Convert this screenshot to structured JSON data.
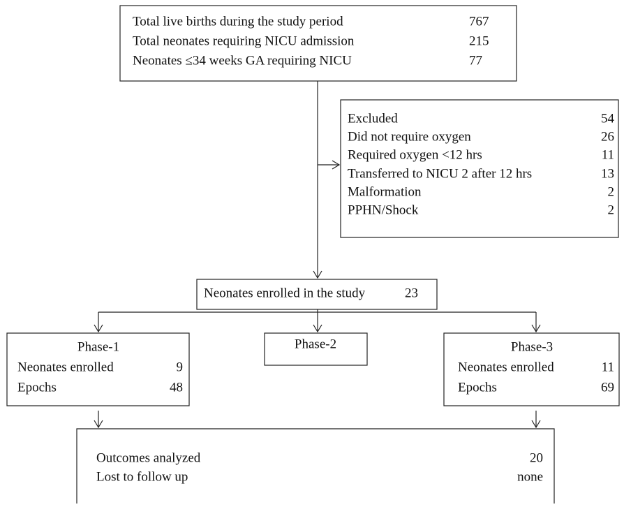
{
  "population": {
    "rows": [
      {
        "label": "Total live births during the study period",
        "value": 767
      },
      {
        "label": "Total neonates requiring NICU admission",
        "value": 215
      },
      {
        "label": "Neonates ≤34 weeks GA requiring NICU",
        "value": 77
      }
    ]
  },
  "excluded": {
    "rows": [
      {
        "label": "Excluded",
        "value": 54
      },
      {
        "label": "Did not require oxygen",
        "value": 26
      },
      {
        "label": "Required oxygen <12 hrs",
        "value": 11
      },
      {
        "label": "Transferred to NICU 2 after 12 hrs",
        "value": 13
      },
      {
        "label": "Malformation",
        "value": 2
      },
      {
        "label": "PPHN/Shock",
        "value": 2
      }
    ]
  },
  "enrolled": {
    "label": "Neonates enrolled in the study",
    "value": 23
  },
  "phase_1": {
    "title": "Phase-1",
    "rows": [
      {
        "label": "Neonates enrolled",
        "value": 9
      },
      {
        "label": "Epochs",
        "value": 48
      }
    ]
  },
  "phase_2": {
    "title": "Phase-2"
  },
  "phase_3": {
    "title": "Phase-3",
    "rows": [
      {
        "label": "Neonates enrolled",
        "value": 11
      },
      {
        "label": "Epochs",
        "value": 69
      }
    ]
  },
  "outcomes": {
    "rows": [
      {
        "label": "Outcomes analyzed",
        "value": 20
      },
      {
        "label": "Lost to follow up",
        "value": "none"
      }
    ]
  }
}
